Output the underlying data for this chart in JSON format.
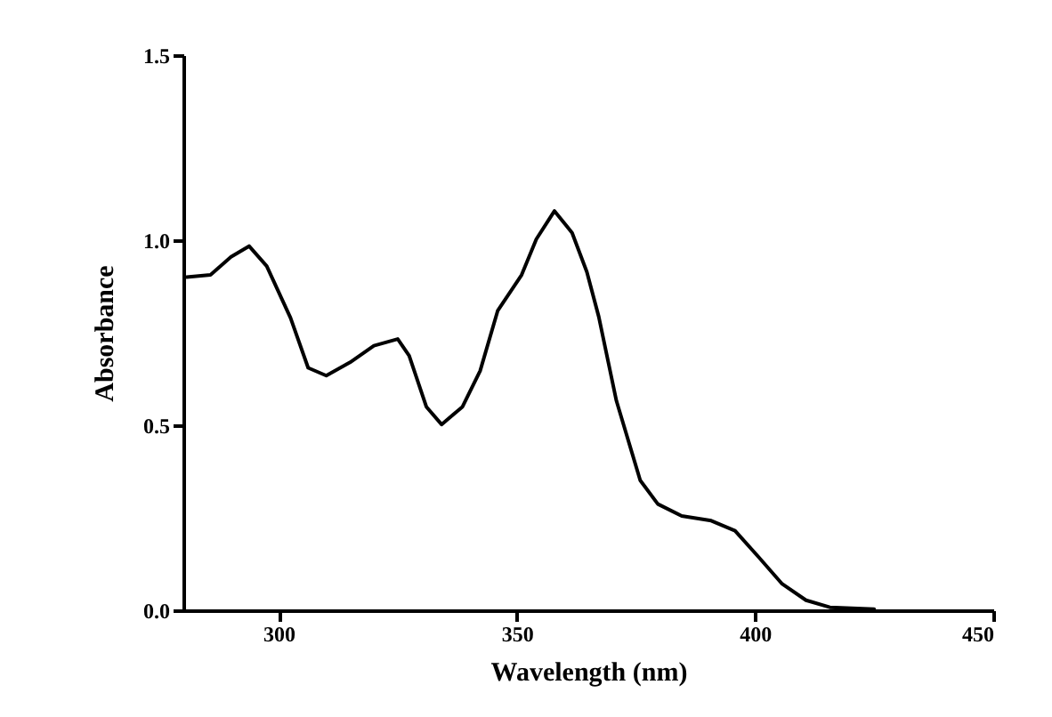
{
  "chart_data": {
    "type": "line",
    "xlabel": "Wavelength (nm)",
    "ylabel": "Absorbance",
    "x": [
      280.7,
      285.7,
      290,
      293.8,
      297.5,
      302.5,
      306.2,
      310,
      315,
      320,
      325,
      327.4,
      331,
      334.2,
      338.6,
      342.3,
      346,
      351,
      354.1,
      357.9,
      361.6,
      364.7,
      367.2,
      370.9,
      375.9,
      379.6,
      384.6,
      390.8,
      395.8,
      400.8,
      405.7,
      410.7,
      415.7,
      425
    ],
    "series": [
      {
        "color": "#000000",
        "values": [
          0.9,
          0.906,
          0.955,
          0.984,
          0.93,
          0.79,
          0.655,
          0.634,
          0.67,
          0.715,
          0.733,
          0.688,
          0.55,
          0.502,
          0.55,
          0.647,
          0.81,
          0.906,
          1.003,
          1.079,
          1.02,
          0.914,
          0.793,
          0.566,
          0.351,
          0.287,
          0.255,
          0.242,
          0.215,
          0.143,
          0.071,
          0.027,
          0.008,
          0.003
        ]
      }
    ],
    "xlim": [
      280,
      450
    ],
    "xticks": [
      300,
      350,
      400,
      450
    ],
    "ylim": [
      0,
      1.5
    ],
    "yticks": [
      {
        "value": 0,
        "label": "0.0"
      },
      {
        "value": 0.5,
        "label": "0.5"
      },
      {
        "value": 1,
        "label": "1.0"
      },
      1.5
    ],
    "grid": false,
    "legend": false,
    "marker": "none",
    "line_style": "solid"
  }
}
